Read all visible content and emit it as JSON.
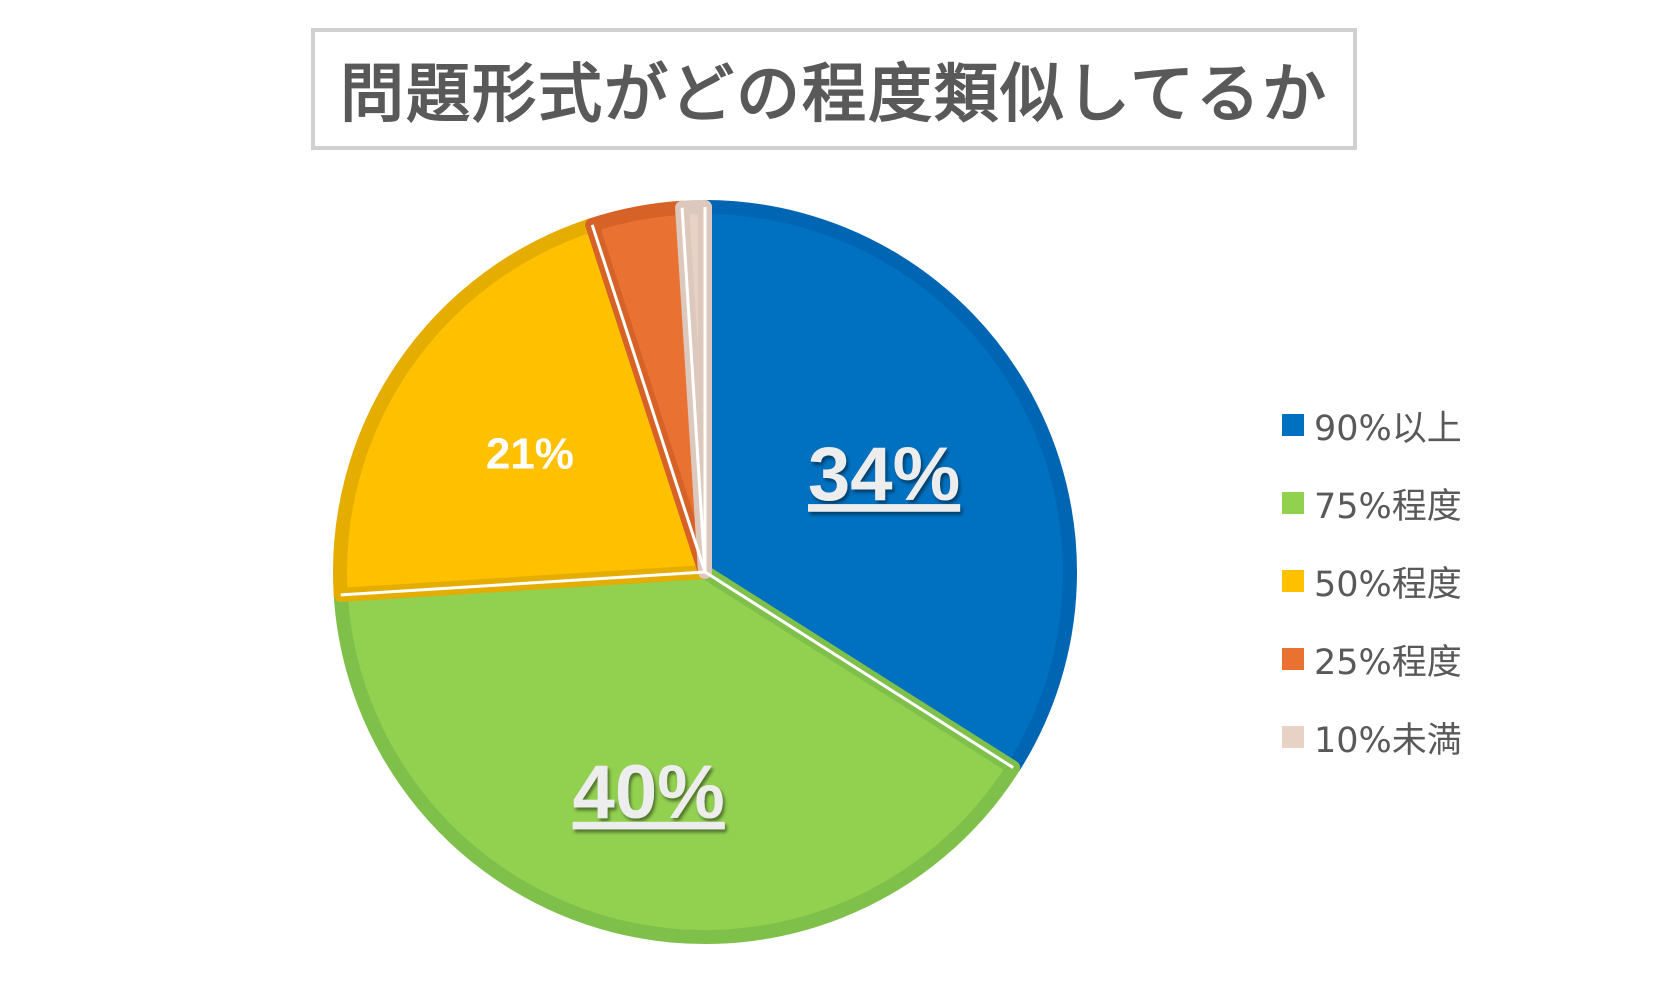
{
  "chart_data": {
    "type": "pie",
    "title": "問題形式がどの程度類似してるか",
    "categories": [
      "90%以上",
      "75%程度",
      "50%程度",
      "25%程度",
      "10%未満"
    ],
    "values": [
      34,
      40,
      21,
      4,
      1
    ],
    "data_labels": [
      "34%",
      "40%",
      "21%",
      "",
      ""
    ],
    "colors": [
      "#0070C0",
      "#92D050",
      "#FFC000",
      "#E97132",
      "#E8D2C6"
    ],
    "edge_colors": [
      "#0066B3",
      "#7FC04A",
      "#E5AD00",
      "#D66227",
      "#DCC8BC"
    ],
    "start_angle_deg": 0,
    "direction": "clockwise",
    "legend_position": "right"
  },
  "label_style": {
    "large_fill": "#EDEDED",
    "small_fill": "#FFFFFF"
  }
}
